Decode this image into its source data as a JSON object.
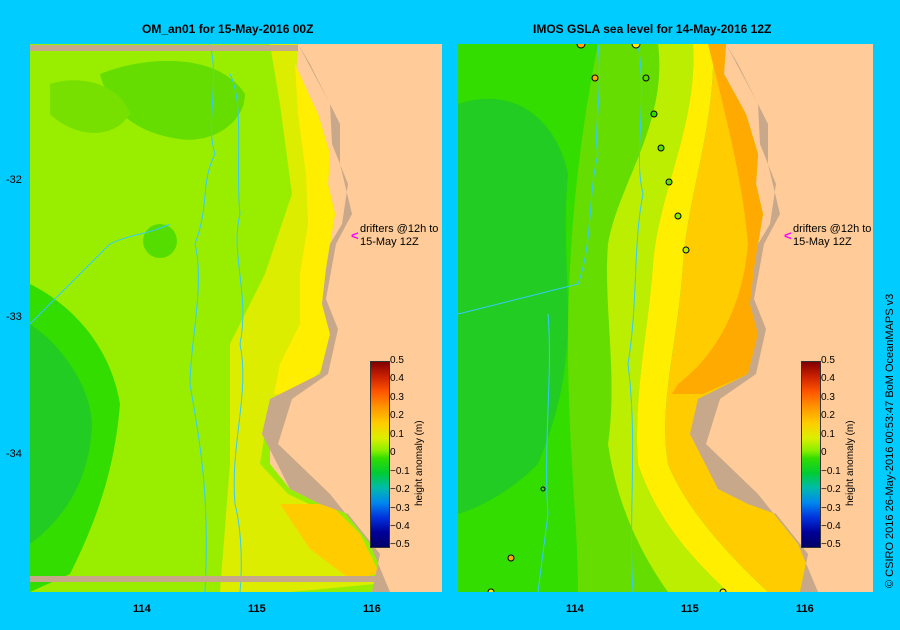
{
  "left_panel": {
    "title": "OM_an01  for 15-May-2016 00Z",
    "drifter_label_line1": "drifters @12h to",
    "drifter_label_line2": "15-May 12Z"
  },
  "right_panel": {
    "title": "IMOS  GSLA sea level   for 14-May-2016 12Z",
    "drifter_label_line1": "drifters @12h to",
    "drifter_label_line2": "15-May 12Z"
  },
  "y_ticks": [
    "-32",
    "-33",
    "-34"
  ],
  "x_ticks": [
    "114",
    "115",
    "116"
  ],
  "colorbar": {
    "label": "height anomaly  (m)",
    "ticks": [
      "0.5",
      "0.4",
      "0.3",
      "0.2",
      "0.1",
      "0",
      "−0.1",
      "−0.2",
      "−0.3",
      "−0.4",
      "−0.5"
    ],
    "range": [
      -0.5,
      0.5
    ]
  },
  "credit": "© CSIRO 2016   26-May-2016 00:53:47 BoM OceanMAPS v3",
  "colors": {
    "frame": "#00ccff",
    "land": "#ffcc99",
    "coast_shelf": "#c8a88a",
    "bathymetry": "#33ccff",
    "drifter_arrow": "#ff00ff"
  }
}
